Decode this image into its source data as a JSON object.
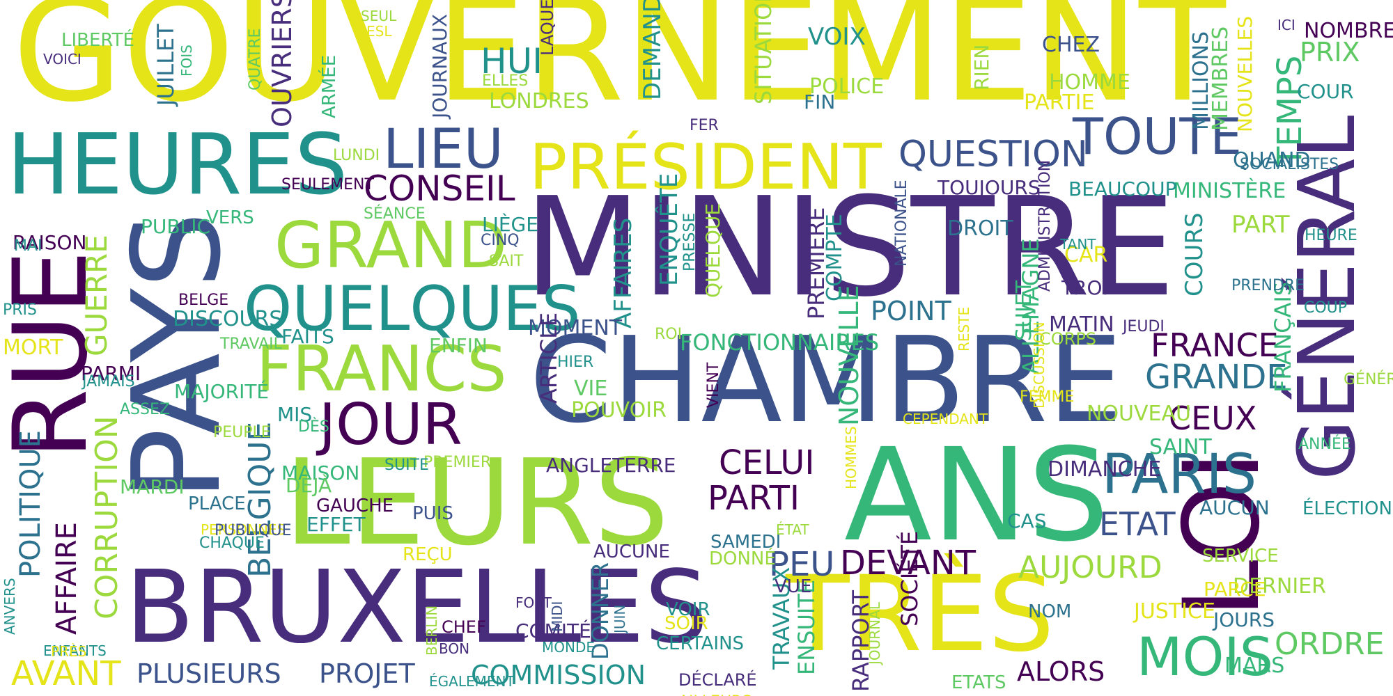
{
  "palette": {
    "yellow": "#e4e419",
    "lime": "#9bd93c",
    "lightgreen": "#5ec962",
    "green": "#35b779",
    "teal": "#21918c",
    "steel": "#2c728e",
    "blue": "#3b528b",
    "indigo": "#472d7b",
    "purple": "#440154"
  },
  "words": [
    {
      "text": "GOUVERNEMENT",
      "color": "yellow"
    },
    {
      "text": "MINISTRE",
      "color": "indigo"
    },
    {
      "text": "CHAMBRE",
      "color": "blue"
    },
    {
      "text": "LEURS",
      "color": "lime"
    },
    {
      "text": "ANS",
      "color": "green"
    },
    {
      "text": "BRUXELLES",
      "color": "indigo"
    },
    {
      "text": "TRÈS",
      "color": "yellow"
    },
    {
      "text": "PAYS",
      "color": "blue"
    },
    {
      "text": "RUE",
      "color": "purple"
    },
    {
      "text": "LOI",
      "color": "purple"
    },
    {
      "text": "GÉNÉRAL",
      "color": "indigo"
    },
    {
      "text": "HEURES",
      "color": "teal"
    },
    {
      "text": "PRÉSIDENT",
      "color": "yellow"
    },
    {
      "text": "GRAND",
      "color": "lime"
    },
    {
      "text": "QUELQUES",
      "color": "teal"
    },
    {
      "text": "FRANCS",
      "color": "lime"
    },
    {
      "text": "JOUR",
      "color": "purple"
    },
    {
      "text": "LIEU",
      "color": "blue"
    },
    {
      "text": "TOUTE",
      "color": "blue"
    },
    {
      "text": "QUESTION",
      "color": "blue"
    },
    {
      "text": "CONSEIL",
      "color": "purple"
    },
    {
      "text": "PARIS",
      "color": "steel"
    },
    {
      "text": "MOIS",
      "color": "green"
    },
    {
      "text": "FRANCE",
      "color": "purple"
    },
    {
      "text": "GRANDE",
      "color": "steel"
    },
    {
      "text": "CELUI",
      "color": "purple"
    },
    {
      "text": "PARTI",
      "color": "purple"
    },
    {
      "text": "DEVANT",
      "color": "purple"
    },
    {
      "text": "AUJOURD",
      "color": "lime"
    },
    {
      "text": "ETAT",
      "color": "blue"
    },
    {
      "text": "CEUX",
      "color": "purple"
    },
    {
      "text": "ORDRE",
      "color": "lightgreen"
    },
    {
      "text": "PEU",
      "color": "blue"
    },
    {
      "text": "COMMISSION",
      "color": "teal"
    },
    {
      "text": "PLUSIEURS",
      "color": "blue"
    },
    {
      "text": "PROJET",
      "color": "blue"
    },
    {
      "text": "AVANT",
      "color": "yellow"
    },
    {
      "text": "ALORS",
      "color": "purple"
    },
    {
      "text": "POLITIQUE",
      "color": "steel"
    },
    {
      "text": "AFFAIRE",
      "color": "purple"
    },
    {
      "text": "CORRUPTION",
      "color": "lime"
    },
    {
      "text": "GUERRE",
      "color": "lime"
    },
    {
      "text": "BELGIQUE",
      "color": "steel"
    },
    {
      "text": "TEMPS",
      "color": "green"
    },
    {
      "text": "HUI",
      "color": "teal"
    },
    {
      "text": "FONCTIONNAIRES",
      "color": "green"
    },
    {
      "text": "POINT",
      "color": "steel"
    },
    {
      "text": "NOUVELLE",
      "color": "green"
    },
    {
      "text": "SOCIÉTÉ",
      "color": "purple"
    },
    {
      "text": "FRANÇAIS",
      "color": "green"
    },
    {
      "text": "ALLEMAGNE",
      "color": "green"
    },
    {
      "text": "AFFAIRES",
      "color": "teal"
    },
    {
      "text": "ENQUÊTE",
      "color": "teal"
    },
    {
      "text": "COMPTE",
      "color": "teal"
    },
    {
      "text": "PREMIÈRE",
      "color": "indigo"
    },
    {
      "text": "RAPPORT",
      "color": "indigo"
    },
    {
      "text": "ENSUITE",
      "color": "green"
    },
    {
      "text": "TRAVAUX",
      "color": "teal"
    },
    {
      "text": "DONNER",
      "color": "steel"
    },
    {
      "text": "OUVRIERS",
      "color": "indigo"
    },
    {
      "text": "JUILLET",
      "color": "steel"
    },
    {
      "text": "DEMANDE",
      "color": "teal"
    },
    {
      "text": "SITUATION",
      "color": "lime"
    },
    {
      "text": "MILLIONS",
      "color": "steel"
    },
    {
      "text": "MEMBRES",
      "color": "lightgreen"
    },
    {
      "text": "COURS",
      "color": "teal"
    },
    {
      "text": "NOMBRE",
      "color": "purple"
    },
    {
      "text": "PRIX",
      "color": "lightgreen"
    },
    {
      "text": "COUR",
      "color": "teal"
    },
    {
      "text": "QUAND",
      "color": "steel"
    },
    {
      "text": "MINISTÈRE",
      "color": "green"
    },
    {
      "text": "BEAUCOUP",
      "color": "teal"
    },
    {
      "text": "TOUJOURS",
      "color": "indigo"
    },
    {
      "text": "DROIT",
      "color": "steel"
    },
    {
      "text": "PART",
      "color": "lime"
    },
    {
      "text": "CAR",
      "color": "yellow"
    },
    {
      "text": "TROP",
      "color": "indigo"
    },
    {
      "text": "MATIN",
      "color": "indigo"
    },
    {
      "text": "DIMANCHE",
      "color": "indigo"
    },
    {
      "text": "SUJET",
      "color": "green"
    },
    {
      "text": "NOUVEAU",
      "color": "lime"
    },
    {
      "text": "SAINT",
      "color": "green"
    },
    {
      "text": "AUCUN",
      "color": "steel"
    },
    {
      "text": "CAS",
      "color": "teal"
    },
    {
      "text": "DERNIER",
      "color": "lime"
    },
    {
      "text": "JUSTICE",
      "color": "yellow"
    },
    {
      "text": "JOURS",
      "color": "steel"
    },
    {
      "text": "MARS",
      "color": "green"
    },
    {
      "text": "PARCE",
      "color": "yellow"
    },
    {
      "text": "NOM",
      "color": "steel"
    },
    {
      "text": "SERVICE",
      "color": "lime"
    },
    {
      "text": "ÉLECTIONS",
      "color": "teal"
    },
    {
      "text": "ANNÉE",
      "color": "green"
    },
    {
      "text": "GÉNÉRALE",
      "color": "lime"
    },
    {
      "text": "COUP",
      "color": "teal"
    },
    {
      "text": "PRENDRE",
      "color": "steel"
    },
    {
      "text": "HEURE",
      "color": "teal"
    },
    {
      "text": "SOCIALISTES",
      "color": "steel"
    },
    {
      "text": "NOUVELLES",
      "color": "yellow"
    },
    {
      "text": "ICI",
      "color": "indigo"
    },
    {
      "text": "CHEZ",
      "color": "blue"
    },
    {
      "text": "HOMME",
      "color": "lime"
    },
    {
      "text": "PARTIE",
      "color": "yellow"
    },
    {
      "text": "RIEN",
      "color": "lime"
    },
    {
      "text": "VOIX",
      "color": "teal"
    },
    {
      "text": "POLICE",
      "color": "lime"
    },
    {
      "text": "FIN",
      "color": "steel"
    },
    {
      "text": "FER",
      "color": "indigo"
    },
    {
      "text": "LAQUELLE",
      "color": "indigo"
    },
    {
      "text": "ELLES",
      "color": "lime"
    },
    {
      "text": "LONDRES",
      "color": "lime"
    },
    {
      "text": "JOURNAUX",
      "color": "blue"
    },
    {
      "text": "QUATRE",
      "color": "lightgreen"
    },
    {
      "text": "ARMÉE",
      "color": "green"
    },
    {
      "text": "SEUL",
      "color": "lime"
    },
    {
      "text": "ESL",
      "color": "yellow"
    },
    {
      "text": "FOIS",
      "color": "green"
    },
    {
      "text": "LIBERTÉ",
      "color": "lightgreen"
    },
    {
      "text": "VOICI",
      "color": "indigo"
    },
    {
      "text": "LUNDI",
      "color": "lime"
    },
    {
      "text": "SEULEMENT",
      "color": "purple"
    },
    {
      "text": "SÉANCE",
      "color": "lightgreen"
    },
    {
      "text": "PUBLIC",
      "color": "green"
    },
    {
      "text": "VERS",
      "color": "green"
    },
    {
      "text": "RAISON",
      "color": "purple"
    },
    {
      "text": "MAI",
      "color": "teal"
    },
    {
      "text": "LIÈGE",
      "color": "teal"
    },
    {
      "text": "CINQ",
      "color": "blue"
    },
    {
      "text": "SAIT",
      "color": "lime"
    },
    {
      "text": "BELGE",
      "color": "purple"
    },
    {
      "text": "DISCOURS",
      "color": "teal"
    },
    {
      "text": "PRIS",
      "color": "teal"
    },
    {
      "text": "MORT",
      "color": "yellow"
    },
    {
      "text": "TRAVAIL",
      "color": "lightgreen"
    },
    {
      "text": "FAITS",
      "color": "teal"
    },
    {
      "text": "PARMI",
      "color": "purple"
    },
    {
      "text": "JAMAIS",
      "color": "teal"
    },
    {
      "text": "MAJORITÉ",
      "color": "green"
    },
    {
      "text": "ASSEZ",
      "color": "green"
    },
    {
      "text": "MIS",
      "color": "teal"
    },
    {
      "text": "DÈS",
      "color": "green"
    },
    {
      "text": "PEUPLE",
      "color": "lime"
    },
    {
      "text": "MOMENT",
      "color": "blue"
    },
    {
      "text": "ENFIN",
      "color": "lightgreen"
    },
    {
      "text": "ROI",
      "color": "lime"
    },
    {
      "text": "QUELQUE",
      "color": "lime"
    },
    {
      "text": "PRESSE",
      "color": "teal"
    },
    {
      "text": "HIER",
      "color": "teal"
    },
    {
      "text": "VIE",
      "color": "lightgreen"
    },
    {
      "text": "POUVOIR",
      "color": "lime"
    },
    {
      "text": "ARTICLE",
      "color": "indigo"
    },
    {
      "text": "VIENT",
      "color": "purple"
    },
    {
      "text": "PREMIER",
      "color": "lime"
    },
    {
      "text": "ANGLETERRE",
      "color": "indigo"
    },
    {
      "text": "SUITE",
      "color": "teal"
    },
    {
      "text": "MAISON",
      "color": "green"
    },
    {
      "text": "MARDI",
      "color": "lightgreen"
    },
    {
      "text": "DÉJÀ",
      "color": "lightgreen"
    },
    {
      "text": "EFFET",
      "color": "teal"
    },
    {
      "text": "PLACE",
      "color": "steel"
    },
    {
      "text": "GAUCHE",
      "color": "purple"
    },
    {
      "text": "PUIS",
      "color": "blue"
    },
    {
      "text": "REÇU",
      "color": "yellow"
    },
    {
      "text": "PERSONNES",
      "color": "yellow"
    },
    {
      "text": "PUBLIQUE",
      "color": "blue"
    },
    {
      "text": "CHAQUE",
      "color": "teal"
    },
    {
      "text": "ENFANTS",
      "color": "teal"
    },
    {
      "text": "ANVERS",
      "color": "teal"
    },
    {
      "text": "PRÈS",
      "color": "yellow"
    },
    {
      "text": "BERLIN",
      "color": "lime"
    },
    {
      "text": "FORT",
      "color": "indigo"
    },
    {
      "text": "CHEF",
      "color": "purple"
    },
    {
      "text": "BON",
      "color": "indigo"
    },
    {
      "text": "ÉGALEMENT",
      "color": "teal"
    },
    {
      "text": "COMITÉ",
      "color": "indigo"
    },
    {
      "text": "MONDE",
      "color": "teal"
    },
    {
      "text": "MIDI",
      "color": "blue"
    },
    {
      "text": "JUIN",
      "color": "steel"
    },
    {
      "text": "AUCUNE",
      "color": "indigo"
    },
    {
      "text": "SAMEDI",
      "color": "steel"
    },
    {
      "text": "DONNÉ",
      "color": "lime"
    },
    {
      "text": "ÉTAT",
      "color": "lime"
    },
    {
      "text": "HOMMES",
      "color": "yellow"
    },
    {
      "text": "VUE",
      "color": "indigo"
    },
    {
      "text": "SOIR",
      "color": "yellow"
    },
    {
      "text": "VOIR",
      "color": "teal"
    },
    {
      "text": "CERTAINS",
      "color": "teal"
    },
    {
      "text": "AILLEURS",
      "color": "yellow"
    },
    {
      "text": "DÉCLARÉ",
      "color": "indigo"
    },
    {
      "text": "ETATS",
      "color": "lightgreen"
    },
    {
      "text": "JOURNAL",
      "color": "lime"
    },
    {
      "text": "NATIONALE",
      "color": "blue"
    },
    {
      "text": "ADMINISTRATION",
      "color": "indigo"
    },
    {
      "text": "TANT",
      "color": "teal"
    },
    {
      "text": "CORPS",
      "color": "lime"
    },
    {
      "text": "FEMME",
      "color": "yellow"
    },
    {
      "text": "DISCUSSION",
      "color": "yellow"
    },
    {
      "text": "RESTE",
      "color": "yellow"
    },
    {
      "text": "CEPENDANT",
      "color": "yellow"
    },
    {
      "text": "JEUDI",
      "color": "indigo"
    }
  ]
}
